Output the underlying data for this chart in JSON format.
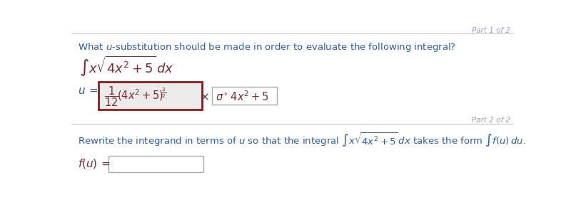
{
  "bg_color": "#ffffff",
  "part1_label": "Part 1 of 2",
  "part2_label": "Part 2 of 2",
  "text_color": "#2e5fa3",
  "math_color_dark": "#7b2c2c",
  "part_label_color": "#a0a0c0",
  "line_color": "#c8c8c8",
  "box_wrong_edge": "#8b1a1a",
  "box_wrong_face": "#ebebeb",
  "box_correct_edge": "#aaaaaa",
  "box_correct_face": "#ffffff",
  "box_fu_edge": "#aaaaaa",
  "box_fu_face": "#ffffff"
}
